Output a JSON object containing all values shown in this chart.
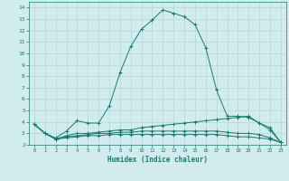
{
  "xlabel": "Humidex (Indice chaleur)",
  "ylabel": "",
  "xlim": [
    -0.5,
    23.5
  ],
  "ylim": [
    2,
    14.5
  ],
  "bg_color": "#d1ecee",
  "grid_color": "#b8d8da",
  "line_color": "#1a7a6e",
  "xticks": [
    0,
    1,
    2,
    3,
    4,
    5,
    6,
    7,
    8,
    9,
    10,
    11,
    12,
    13,
    14,
    15,
    16,
    17,
    18,
    19,
    20,
    21,
    22,
    23
  ],
  "yticks": [
    2,
    3,
    4,
    5,
    6,
    7,
    8,
    9,
    10,
    11,
    12,
    13,
    14
  ],
  "series": [
    {
      "x": [
        0,
        1,
        2,
        3,
        4,
        5,
        6,
        7,
        8,
        9,
        10,
        11,
        12,
        13,
        14,
        15,
        16,
        17,
        18,
        19,
        20,
        21,
        22,
        23
      ],
      "y": [
        3.8,
        3.0,
        2.6,
        3.2,
        4.1,
        3.9,
        3.9,
        5.4,
        8.3,
        10.6,
        12.1,
        12.9,
        13.8,
        13.5,
        13.2,
        12.5,
        10.5,
        6.8,
        4.5,
        4.5,
        4.4,
        3.9,
        3.5,
        2.2
      ]
    },
    {
      "x": [
        0,
        1,
        2,
        3,
        4,
        5,
        6,
        7,
        8,
        9,
        10,
        11,
        12,
        13,
        14,
        15,
        16,
        17,
        18,
        19,
        20,
        21,
        22,
        23
      ],
      "y": [
        3.8,
        3.0,
        2.5,
        2.8,
        3.0,
        3.0,
        3.1,
        3.2,
        3.3,
        3.3,
        3.5,
        3.6,
        3.7,
        3.8,
        3.9,
        4.0,
        4.1,
        4.2,
        4.3,
        4.4,
        4.5,
        3.9,
        3.3,
        2.2
      ]
    },
    {
      "x": [
        0,
        1,
        2,
        3,
        4,
        5,
        6,
        7,
        8,
        9,
        10,
        11,
        12,
        13,
        14,
        15,
        16,
        17,
        18,
        19,
        20,
        21,
        22,
        23
      ],
      "y": [
        3.8,
        3.0,
        2.5,
        2.7,
        2.8,
        2.9,
        3.0,
        3.0,
        3.1,
        3.1,
        3.2,
        3.2,
        3.2,
        3.2,
        3.2,
        3.2,
        3.2,
        3.2,
        3.1,
        3.0,
        3.0,
        2.9,
        2.6,
        2.2
      ]
    },
    {
      "x": [
        0,
        1,
        2,
        3,
        4,
        5,
        6,
        7,
        8,
        9,
        10,
        11,
        12,
        13,
        14,
        15,
        16,
        17,
        18,
        19,
        20,
        21,
        22,
        23
      ],
      "y": [
        3.8,
        3.0,
        2.5,
        2.6,
        2.7,
        2.8,
        2.8,
        2.9,
        2.9,
        2.9,
        2.9,
        2.9,
        2.9,
        2.9,
        2.9,
        2.9,
        2.9,
        2.9,
        2.8,
        2.7,
        2.7,
        2.6,
        2.5,
        2.2
      ]
    }
  ]
}
